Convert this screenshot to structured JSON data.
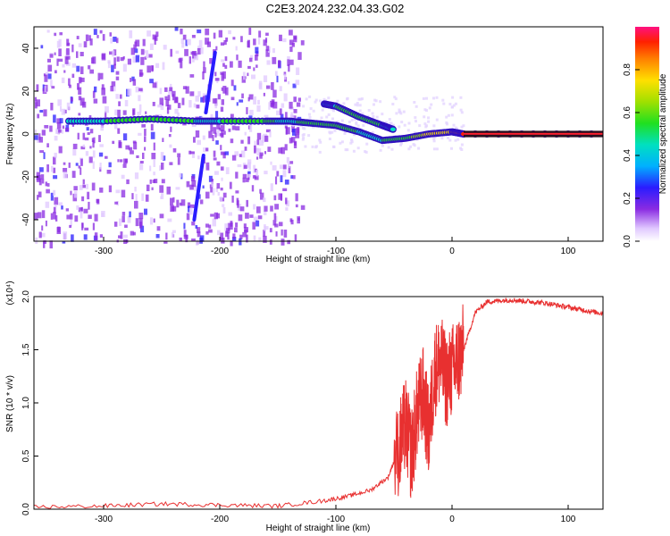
{
  "title": "C2E3.2024.232.04.33.G02",
  "chart_data": [
    {
      "type": "heatmap",
      "xlabel": "Height of straight line (km)",
      "ylabel": "Frequency (Hz)",
      "xlim": [
        -360,
        130
      ],
      "ylim": [
        -50,
        50
      ],
      "x_ticks": [
        "-300",
        "-200",
        "-100",
        "0",
        "100"
      ],
      "y_ticks": [
        "-40",
        "-20",
        "0",
        "20",
        "40"
      ],
      "colorbar": {
        "label": "Normalized spectral amplitude",
        "ticks": [
          "0.0",
          "0.2",
          "0.4",
          "0.6",
          "0.8"
        ],
        "range": [
          0,
          1
        ]
      },
      "tracks": [
        {
          "x": [
            -330,
            -300,
            -260,
            -220,
            -200,
            -160,
            -140,
            -120,
            -100,
            -80,
            -60,
            -40,
            -20,
            0,
            10,
            130
          ],
          "y": [
            6,
            6,
            7,
            6,
            6,
            6,
            6,
            5,
            4,
            1,
            -3,
            -2,
            0,
            1,
            0,
            0
          ],
          "amplitude": [
            0.45,
            0.45,
            0.5,
            0.45,
            0.45,
            0.5,
            0.4,
            0.55,
            0.5,
            0.45,
            0.45,
            0.5,
            0.7,
            0.75,
            0.9,
            0.9
          ]
        },
        {
          "x": [
            -110,
            -100,
            -80,
            -60,
            -50
          ],
          "y": [
            14,
            13,
            8,
            4,
            2
          ],
          "amplitude": [
            0.3,
            0.45,
            0.5,
            0.45,
            0.4
          ]
        }
      ],
      "streaks": [
        {
          "x": [
            -212,
            -204
          ],
          "y": [
            10,
            38
          ]
        },
        {
          "x": [
            -222,
            -214
          ],
          "y": [
            -40,
            -10
          ]
        }
      ],
      "noise_region_x": [
        -360,
        -130
      ]
    },
    {
      "type": "line",
      "xlabel": "Height of straight line (km)",
      "ylabel": "SNR (10 * v/v)",
      "scale_label": "(x10⁴)",
      "xlim": [
        -360,
        130
      ],
      "ylim": [
        0,
        2
      ],
      "x_ticks": [
        "-300",
        "-200",
        "-100",
        "0",
        "100"
      ],
      "y_ticks": [
        "0.0",
        "0.5",
        "1.0",
        "1.5",
        "2.0"
      ],
      "line_color": "#e83030",
      "series": [
        {
          "x": [
            -360,
            -300,
            -250,
            -200,
            -150,
            -110,
            -90,
            -70,
            -55,
            -45,
            -40,
            -35,
            -30,
            -25,
            -20,
            -15,
            -10,
            -5,
            0,
            5,
            10,
            20,
            30,
            40,
            50,
            60,
            70,
            80,
            90,
            100,
            110,
            120,
            130
          ],
          "y": [
            0.02,
            0.03,
            0.05,
            0.04,
            0.03,
            0.08,
            0.12,
            0.18,
            0.3,
            0.6,
            0.8,
            0.5,
            0.9,
            1.1,
            0.7,
            1.3,
            1.4,
            1.2,
            1.3,
            1.4,
            1.5,
            1.85,
            1.95,
            1.96,
            1.97,
            1.96,
            1.95,
            1.94,
            1.92,
            1.9,
            1.88,
            1.86,
            1.84
          ]
        }
      ]
    }
  ]
}
